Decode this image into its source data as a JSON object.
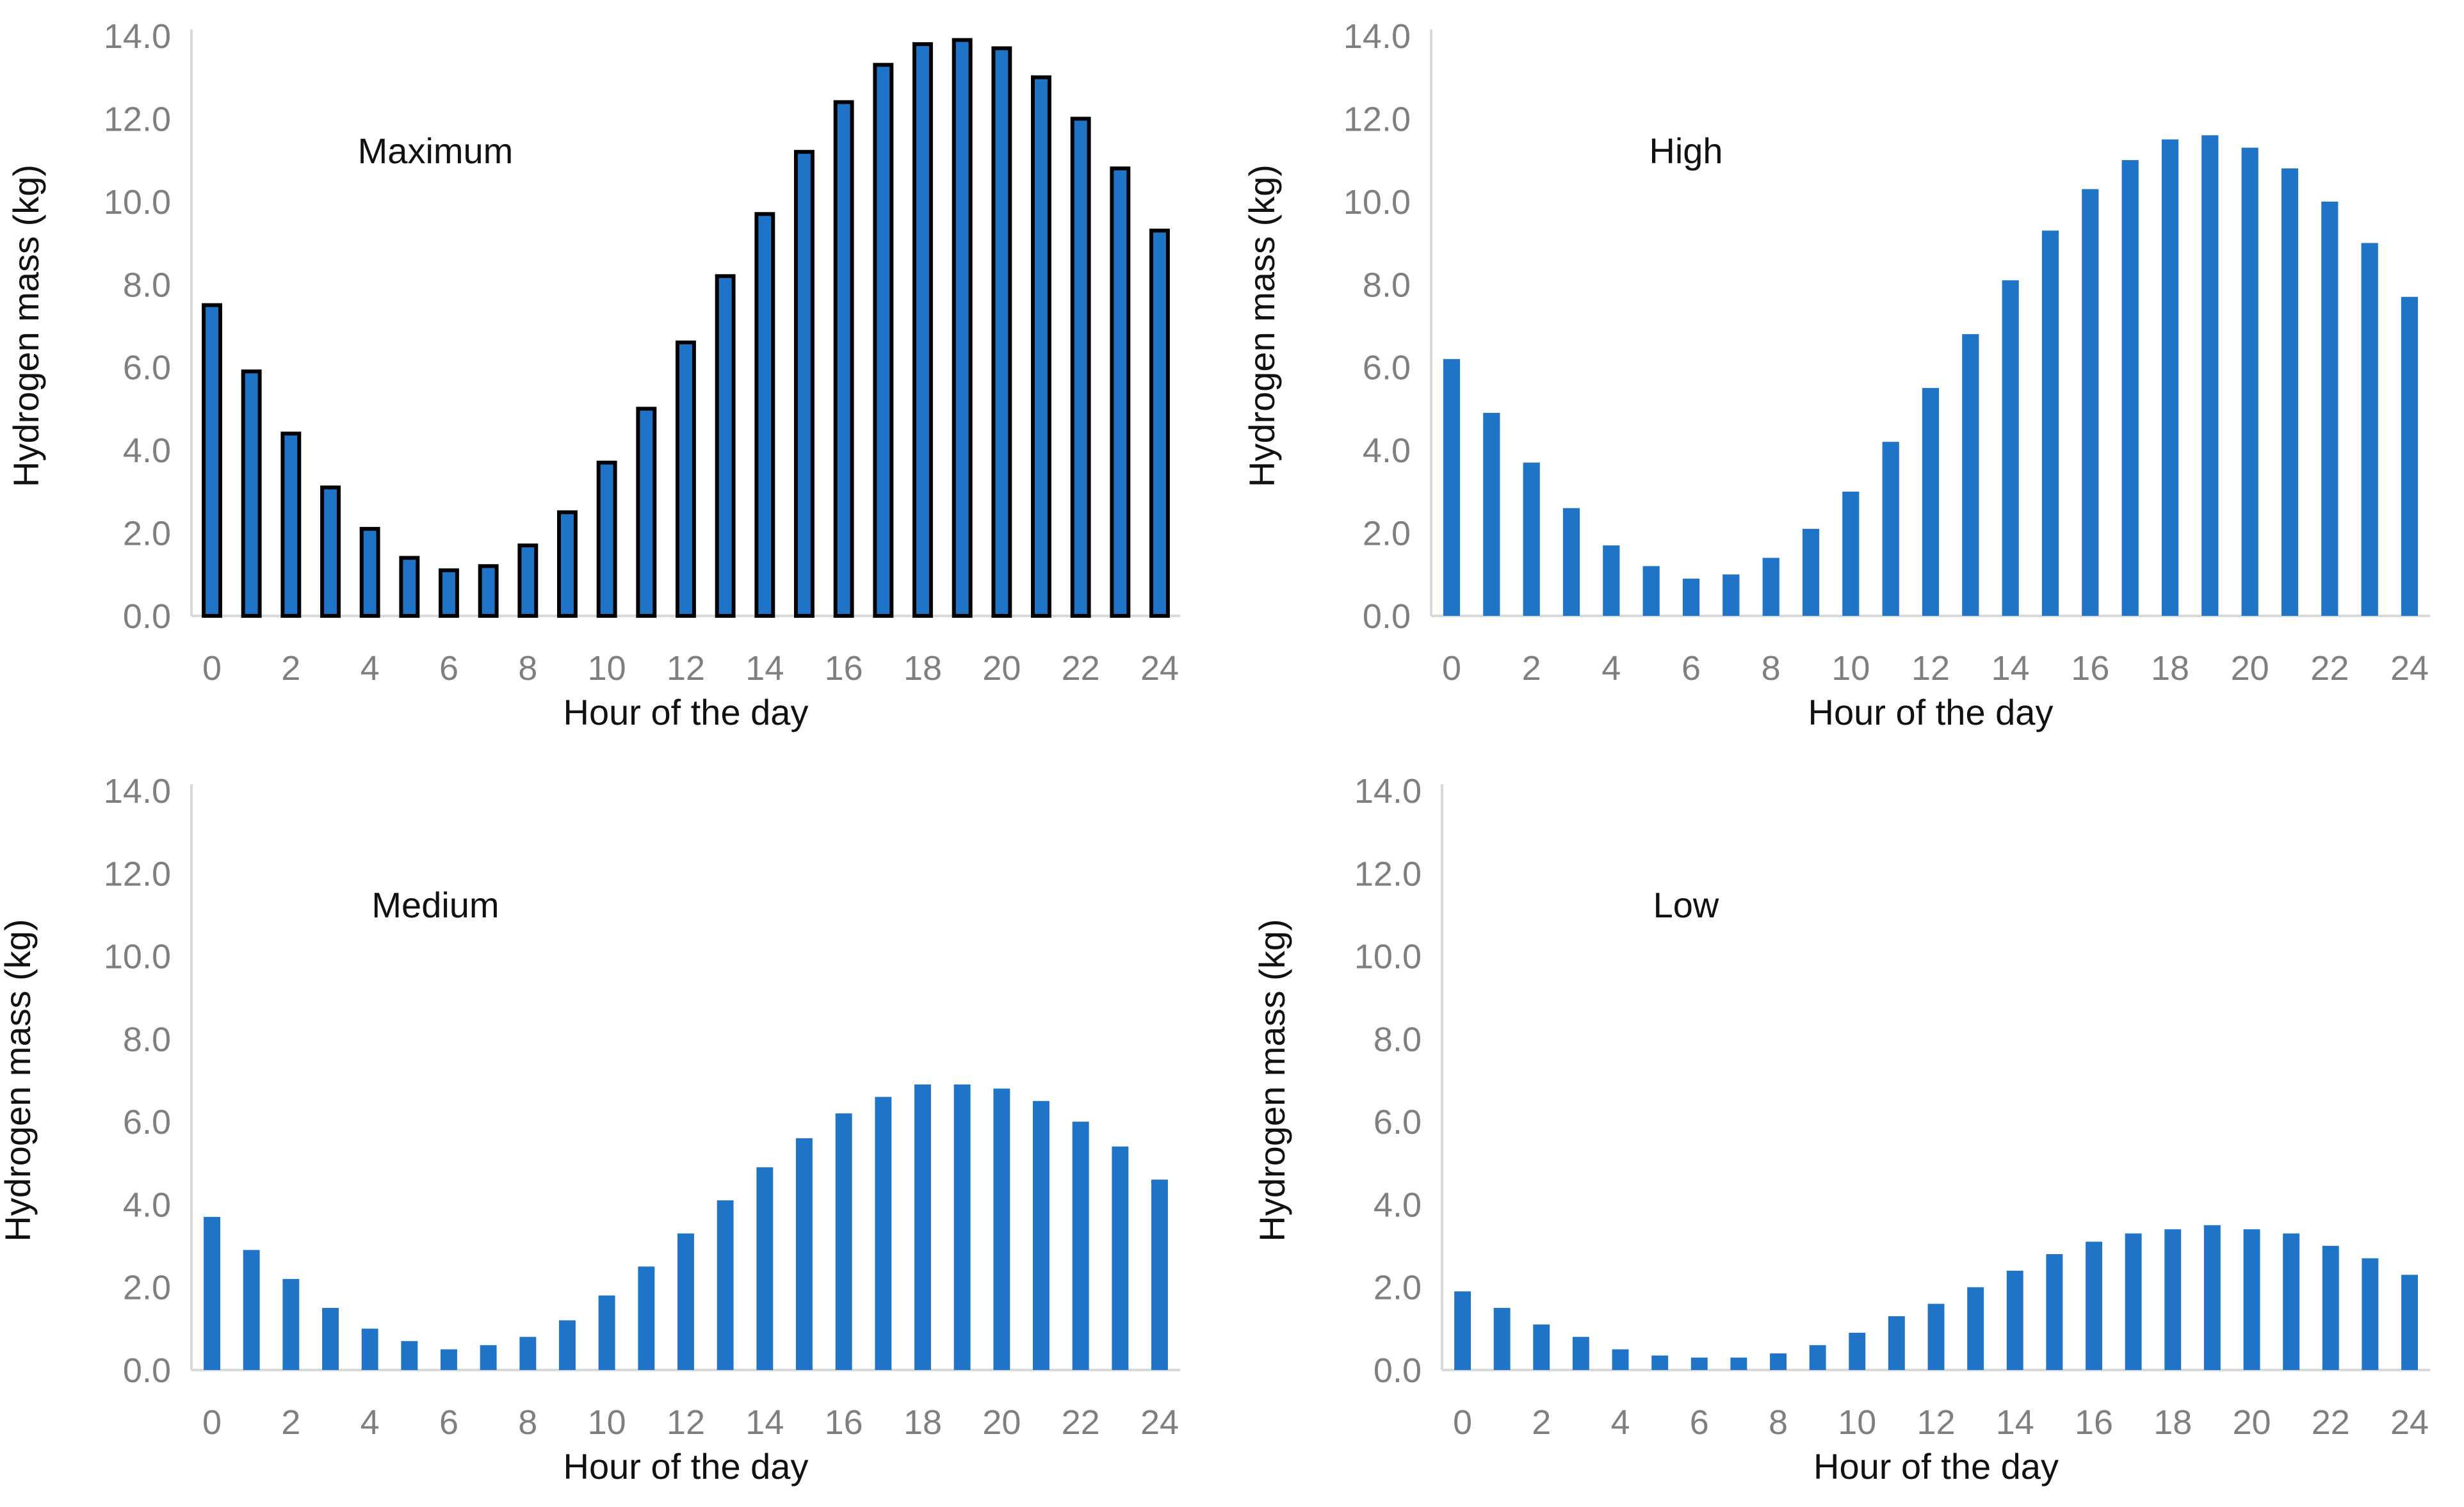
{
  "figure": {
    "panels": [
      "maximum",
      "high",
      "medium",
      "low"
    ]
  },
  "chart_data": [
    {
      "id": "maximum",
      "type": "bar",
      "annotation": "Maximum",
      "xlabel": "Hour of the day",
      "ylabel": "Hydrogen mass (kg)",
      "xlim": [
        0,
        24
      ],
      "ylim": [
        0,
        14
      ],
      "xticks": [
        "0",
        "2",
        "4",
        "6",
        "8",
        "10",
        "12",
        "14",
        "16",
        "18",
        "20",
        "22",
        "24"
      ],
      "yticks": [
        "0.0",
        "2.0",
        "4.0",
        "6.0",
        "8.0",
        "10.0",
        "12.0",
        "14.0"
      ],
      "x": [
        0,
        1,
        2,
        3,
        4,
        5,
        6,
        7,
        8,
        9,
        10,
        11,
        12,
        13,
        14,
        15,
        16,
        17,
        18,
        19,
        20,
        21,
        22,
        23,
        24
      ],
      "values": [
        7.5,
        5.9,
        4.4,
        3.1,
        2.1,
        1.4,
        1.1,
        1.2,
        1.7,
        2.5,
        3.7,
        5.0,
        6.6,
        8.2,
        9.7,
        11.2,
        12.4,
        13.3,
        13.8,
        13.9,
        13.7,
        13.0,
        12.0,
        10.8,
        9.3
      ],
      "bar_color": "#1f74c8",
      "bar_outline": "#000000"
    },
    {
      "id": "high",
      "type": "bar",
      "annotation": "High",
      "xlabel": "Hour of the day",
      "ylabel": "Hydrogen mass (kg)",
      "xlim": [
        0,
        24
      ],
      "ylim": [
        0,
        14
      ],
      "xticks": [
        "0",
        "2",
        "4",
        "6",
        "8",
        "10",
        "12",
        "14",
        "16",
        "18",
        "20",
        "22",
        "24"
      ],
      "yticks": [
        "0.0",
        "2.0",
        "4.0",
        "6.0",
        "8.0",
        "10.0",
        "12.0",
        "14.0"
      ],
      "x": [
        0,
        1,
        2,
        3,
        4,
        5,
        6,
        7,
        8,
        9,
        10,
        11,
        12,
        13,
        14,
        15,
        16,
        17,
        18,
        19,
        20,
        21,
        22,
        23,
        24
      ],
      "values": [
        6.2,
        4.9,
        3.7,
        2.6,
        1.7,
        1.2,
        0.9,
        1.0,
        1.4,
        2.1,
        3.0,
        4.2,
        5.5,
        6.8,
        8.1,
        9.3,
        10.3,
        11.0,
        11.5,
        11.6,
        11.3,
        10.8,
        10.0,
        9.0,
        7.7
      ],
      "bar_color": "#1f74c8",
      "bar_outline": ""
    },
    {
      "id": "medium",
      "type": "bar",
      "annotation": "Medium",
      "xlabel": "Hour of the day",
      "ylabel": "Hydrogen mass (kg)",
      "xlim": [
        0,
        24
      ],
      "ylim": [
        0,
        14
      ],
      "xticks": [
        "0",
        "2",
        "4",
        "6",
        "8",
        "10",
        "12",
        "14",
        "16",
        "18",
        "20",
        "22",
        "24"
      ],
      "yticks": [
        "0.0",
        "2.0",
        "4.0",
        "6.0",
        "8.0",
        "10.0",
        "12.0",
        "14.0"
      ],
      "x": [
        0,
        1,
        2,
        3,
        4,
        5,
        6,
        7,
        8,
        9,
        10,
        11,
        12,
        13,
        14,
        15,
        16,
        17,
        18,
        19,
        20,
        21,
        22,
        23,
        24
      ],
      "values": [
        3.7,
        2.9,
        2.2,
        1.5,
        1.0,
        0.7,
        0.5,
        0.6,
        0.8,
        1.2,
        1.8,
        2.5,
        3.3,
        4.1,
        4.9,
        5.6,
        6.2,
        6.6,
        6.9,
        6.9,
        6.8,
        6.5,
        6.0,
        5.4,
        4.6
      ],
      "bar_color": "#1f74c8",
      "bar_outline": ""
    },
    {
      "id": "low",
      "type": "bar",
      "annotation": "Low",
      "xlabel": "Hour of the day",
      "ylabel": "Hydrogen mass (kg)",
      "xlim": [
        0,
        24
      ],
      "ylim": [
        0,
        14
      ],
      "xticks": [
        "0",
        "2",
        "4",
        "6",
        "8",
        "10",
        "12",
        "14",
        "16",
        "18",
        "20",
        "22",
        "24"
      ],
      "yticks": [
        "0.0",
        "2.0",
        "4.0",
        "6.0",
        "8.0",
        "10.0",
        "12.0",
        "14.0"
      ],
      "x": [
        0,
        1,
        2,
        3,
        4,
        5,
        6,
        7,
        8,
        9,
        10,
        11,
        12,
        13,
        14,
        15,
        16,
        17,
        18,
        19,
        20,
        21,
        22,
        23,
        24
      ],
      "values": [
        1.9,
        1.5,
        1.1,
        0.8,
        0.5,
        0.35,
        0.3,
        0.3,
        0.4,
        0.6,
        0.9,
        1.3,
        1.6,
        2.0,
        2.4,
        2.8,
        3.1,
        3.3,
        3.4,
        3.5,
        3.4,
        3.3,
        3.0,
        2.7,
        2.3
      ],
      "bar_color": "#1f74c8",
      "bar_outline": ""
    }
  ]
}
